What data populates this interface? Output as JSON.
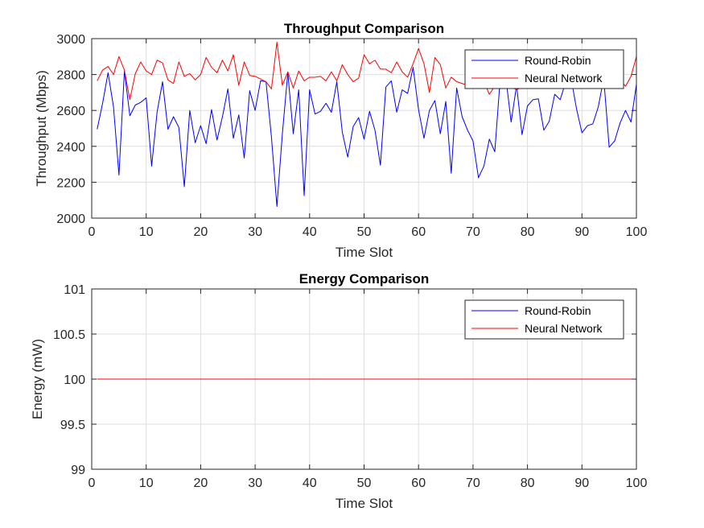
{
  "chart_data": [
    {
      "type": "line",
      "title": "Throughput Comparison",
      "xlabel": "Time Slot",
      "ylabel": "Throughput (Mbps)",
      "xlim": [
        0,
        100
      ],
      "ylim": [
        2000,
        3000
      ],
      "xticks": [
        0,
        10,
        20,
        30,
        40,
        50,
        60,
        70,
        80,
        90,
        100
      ],
      "yticks": [
        2000,
        2200,
        2400,
        2600,
        2800,
        3000
      ],
      "grid": true,
      "legend_position": "top-right",
      "x": [
        1,
        2,
        3,
        4,
        5,
        6,
        7,
        8,
        9,
        10,
        11,
        12,
        13,
        14,
        15,
        16,
        17,
        18,
        19,
        20,
        21,
        22,
        23,
        24,
        25,
        26,
        27,
        28,
        29,
        30,
        31,
        32,
        33,
        34,
        35,
        36,
        37,
        38,
        39,
        40,
        41,
        42,
        43,
        44,
        45,
        46,
        47,
        48,
        49,
        50,
        51,
        52,
        53,
        54,
        55,
        56,
        57,
        58,
        59,
        60,
        61,
        62,
        63,
        64,
        65,
        66,
        67,
        68,
        69,
        70,
        71,
        72,
        73,
        74,
        75,
        76,
        77,
        78,
        79,
        80,
        81,
        82,
        83,
        84,
        85,
        86,
        87,
        88,
        89,
        90,
        91,
        92,
        93,
        94,
        95,
        96,
        97,
        98,
        99,
        100
      ],
      "series": [
        {
          "name": "Round-Robin",
          "color": "#0000ff",
          "values": [
            2495,
            2640,
            2810,
            2620,
            2240,
            2820,
            2570,
            2630,
            2645,
            2670,
            2290,
            2590,
            2760,
            2495,
            2565,
            2505,
            2175,
            2600,
            2420,
            2515,
            2415,
            2605,
            2435,
            2565,
            2720,
            2445,
            2575,
            2335,
            2710,
            2600,
            2765,
            2760,
            2450,
            2065,
            2470,
            2810,
            2470,
            2715,
            2125,
            2715,
            2580,
            2595,
            2640,
            2590,
            2760,
            2480,
            2340,
            2510,
            2560,
            2440,
            2595,
            2490,
            2295,
            2730,
            2765,
            2590,
            2715,
            2695,
            2840,
            2605,
            2445,
            2600,
            2655,
            2470,
            2650,
            2250,
            2725,
            2565,
            2490,
            2430,
            2225,
            2290,
            2440,
            2370,
            2780,
            2790,
            2535,
            2740,
            2465,
            2625,
            2660,
            2665,
            2490,
            2540,
            2690,
            2660,
            2755,
            2780,
            2610,
            2475,
            2515,
            2525,
            2620,
            2780,
            2395,
            2430,
            2530,
            2600,
            2535,
            2745
          ]
        },
        {
          "name": "Neural Network",
          "color": "#ff0000",
          "values": [
            2765,
            2825,
            2845,
            2800,
            2900,
            2825,
            2660,
            2805,
            2870,
            2820,
            2800,
            2880,
            2865,
            2770,
            2750,
            2870,
            2790,
            2805,
            2770,
            2800,
            2895,
            2840,
            2810,
            2880,
            2820,
            2910,
            2740,
            2870,
            2795,
            2790,
            2775,
            2760,
            2720,
            2980,
            2740,
            2815,
            2725,
            2820,
            2765,
            2785,
            2785,
            2790,
            2765,
            2815,
            2765,
            2855,
            2800,
            2760,
            2780,
            2910,
            2860,
            2880,
            2830,
            2830,
            2810,
            2870,
            2815,
            2785,
            2860,
            2945,
            2860,
            2700,
            2895,
            2855,
            2725,
            2785,
            2760,
            2750,
            2740,
            2760,
            2790,
            2760,
            2690,
            2735,
            2720,
            2750,
            2730,
            2715,
            2730,
            2755,
            2765,
            2800,
            2780,
            2805,
            2820,
            2790,
            2815,
            2830,
            2765,
            2800,
            2755,
            2805,
            2800,
            2750,
            2780,
            2760,
            2770,
            2735,
            2790,
            2900
          ]
        }
      ]
    },
    {
      "type": "line",
      "title": "Energy Comparison",
      "xlabel": "Time Slot",
      "ylabel": "Energy (mW)",
      "xlim": [
        0,
        100
      ],
      "ylim": [
        99,
        101
      ],
      "xticks": [
        0,
        10,
        20,
        30,
        40,
        50,
        60,
        70,
        80,
        90,
        100
      ],
      "yticks": [
        99,
        99.5,
        100,
        100.5,
        101
      ],
      "grid": true,
      "legend_position": "top-right",
      "x": [
        1,
        100
      ],
      "series": [
        {
          "name": "Round-Robin",
          "color": "#0000ff",
          "values": [
            100,
            100
          ]
        },
        {
          "name": "Neural Network",
          "color": "#ff0000",
          "values": [
            100,
            100
          ]
        }
      ]
    }
  ]
}
